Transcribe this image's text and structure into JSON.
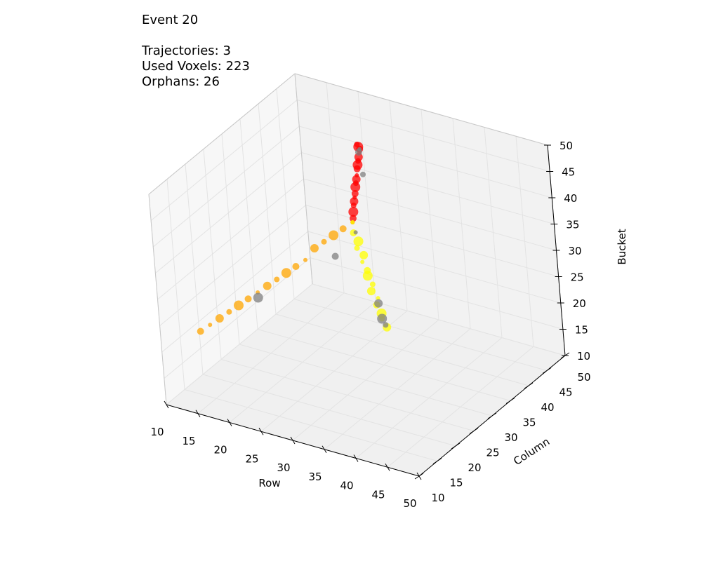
{
  "info": {
    "title": "Event 20",
    "trajectories": "Trajectories: 3",
    "used_voxels": "Used Voxels: 223",
    "orphans": "Orphans: 26"
  },
  "chart_data": {
    "type": "scatter3d",
    "xlabel": "Row",
    "ylabel": "Column",
    "zlabel": "Bucket",
    "xlim": [
      10,
      50
    ],
    "ylim": [
      10,
      50
    ],
    "zlim": [
      10,
      50
    ],
    "xticks": [
      10,
      15,
      20,
      25,
      30,
      35,
      40,
      45,
      50
    ],
    "yticks": [
      10,
      15,
      20,
      25,
      30,
      35,
      40,
      45,
      50
    ],
    "zticks": [
      10,
      15,
      20,
      25,
      30,
      35,
      40,
      45,
      50
    ],
    "grid": true,
    "colors": {
      "pane_back": "#f2f2f2",
      "pane_side": "#f7f7f7",
      "pane_floor": "#f0f0f0",
      "grid": "#e3e3e3",
      "red": "#ff0000",
      "orange": "#ffa500",
      "yellow": "#ffff00",
      "gray": "#808080"
    },
    "series": [
      {
        "color": "#ff0000",
        "points": [
          [
            30,
            30,
            40
          ],
          [
            29.5,
            31,
            40
          ],
          [
            29,
            32,
            40.5
          ],
          [
            28.5,
            33,
            41
          ],
          [
            28,
            34,
            41
          ],
          [
            27.5,
            35,
            41
          ],
          [
            27,
            36,
            41
          ],
          [
            26.5,
            37,
            41.5
          ],
          [
            26,
            38,
            41.5
          ],
          [
            25.5,
            39,
            41.5
          ],
          [
            25,
            40,
            41.5
          ],
          [
            24.5,
            41,
            42
          ],
          [
            24,
            42,
            42
          ],
          [
            23.5,
            43,
            42
          ],
          [
            23,
            44,
            42
          ],
          [
            22.5,
            45,
            42
          ],
          [
            22,
            46,
            42
          ],
          [
            21.5,
            46.5,
            42
          ],
          [
            21,
            47,
            42
          ]
        ]
      },
      {
        "color": "#ffa500",
        "points": [
          [
            30,
            30,
            40
          ],
          [
            29,
            29,
            39
          ],
          [
            28,
            28,
            38
          ],
          [
            27,
            27,
            37
          ],
          [
            26,
            26,
            36
          ],
          [
            25,
            25,
            34
          ],
          [
            24,
            24,
            33
          ],
          [
            23,
            23,
            32
          ],
          [
            22,
            22,
            31
          ],
          [
            21,
            21,
            30
          ],
          [
            20,
            20,
            29
          ],
          [
            19,
            19,
            28
          ],
          [
            18,
            18,
            27
          ],
          [
            17,
            17,
            26
          ],
          [
            16,
            16,
            25
          ],
          [
            15,
            15,
            24
          ],
          [
            14,
            14,
            23
          ]
        ]
      },
      {
        "color": "#ffff00",
        "points": [
          [
            30,
            30,
            40
          ],
          [
            30,
            30,
            38
          ],
          [
            31,
            29.5,
            37
          ],
          [
            31,
            29,
            36
          ],
          [
            32,
            29,
            35
          ],
          [
            32,
            28.5,
            34
          ],
          [
            33,
            28,
            33
          ],
          [
            33,
            28,
            32
          ],
          [
            34,
            27.5,
            31
          ],
          [
            34,
            27,
            30
          ],
          [
            35,
            27,
            29
          ],
          [
            35,
            26.5,
            28
          ],
          [
            36,
            26,
            27
          ],
          [
            36,
            26,
            26
          ],
          [
            37,
            25.5,
            25
          ]
        ]
      },
      {
        "color": "#808080",
        "points": [
          [
            22,
            46,
            42
          ],
          [
            21.5,
            46.5,
            41
          ],
          [
            36,
            26,
            26
          ],
          [
            36.5,
            26,
            25
          ],
          [
            35,
            27,
            28
          ],
          [
            31,
            29,
            39
          ],
          [
            28,
            28,
            34
          ],
          [
            20,
            20,
            28
          ],
          [
            26,
            40,
            42
          ]
        ]
      }
    ]
  }
}
